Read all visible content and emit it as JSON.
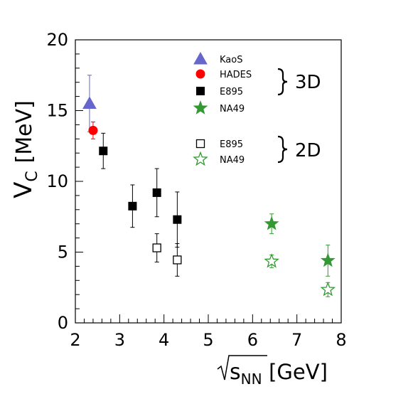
{
  "chart_data": {
    "type": "scatter",
    "title": "",
    "xlabel": "s",
    "xlabel_sub": "NN",
    "xlabel_unit": "[GeV]",
    "ylabel": "V",
    "ylabel_sub": "C",
    "ylabel_unit": "[MeV]",
    "xlim": [
      2,
      8
    ],
    "ylim": [
      0,
      20
    ],
    "xticks": [
      2,
      3,
      4,
      5,
      6,
      7,
      8
    ],
    "yticks": [
      0,
      5,
      10,
      15,
      20
    ],
    "grid": false,
    "legend_position": "top-right",
    "groups": [
      {
        "label": "3D",
        "series": [
          "KaoS",
          "HADES",
          "E895 (3D)",
          "NA49 (3D)"
        ]
      },
      {
        "label": "2D",
        "series": [
          "E895 (2D)",
          "NA49 (2D)"
        ]
      }
    ],
    "series": [
      {
        "name": "KaoS",
        "marker": "triangle",
        "filled": true,
        "color": "#6666cc",
        "points": [
          {
            "x": 2.32,
            "y": 15.5,
            "err": 2.0
          }
        ]
      },
      {
        "name": "HADES",
        "marker": "circle",
        "filled": true,
        "color": "#ff0000",
        "points": [
          {
            "x": 2.4,
            "y": 13.6,
            "err": 0.6
          }
        ]
      },
      {
        "name": "E895",
        "marker": "square",
        "filled": true,
        "color": "#000000",
        "points": [
          {
            "x": 2.63,
            "y": 12.15,
            "err": 1.25
          },
          {
            "x": 3.29,
            "y": 8.25,
            "err": 1.5
          },
          {
            "x": 3.84,
            "y": 9.2,
            "err": 1.7
          },
          {
            "x": 4.3,
            "y": 7.3,
            "err": 1.95
          }
        ]
      },
      {
        "name": "NA49",
        "marker": "star",
        "filled": true,
        "color": "#339933",
        "points": [
          {
            "x": 6.43,
            "y": 7.0,
            "err": 0.7
          },
          {
            "x": 7.7,
            "y": 4.4,
            "err": 1.1
          }
        ]
      },
      {
        "name": "E895",
        "marker": "square",
        "filled": false,
        "color": "#000000",
        "points": [
          {
            "x": 3.84,
            "y": 5.3,
            "err": 1.0
          },
          {
            "x": 4.3,
            "y": 4.45,
            "err": 1.15
          }
        ]
      },
      {
        "name": "NA49",
        "marker": "star",
        "filled": false,
        "color": "#339933",
        "points": [
          {
            "x": 6.43,
            "y": 4.35,
            "err": 0.45
          },
          {
            "x": 7.7,
            "y": 2.35,
            "err": 0.5
          }
        ]
      }
    ]
  }
}
